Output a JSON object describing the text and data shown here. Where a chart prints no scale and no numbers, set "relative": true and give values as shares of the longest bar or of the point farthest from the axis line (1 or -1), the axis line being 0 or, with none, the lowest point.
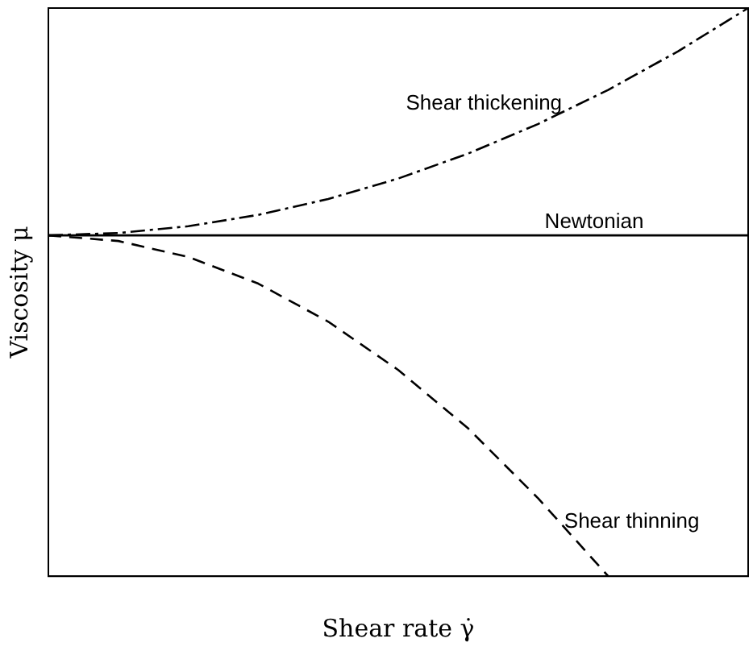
{
  "chart_data": {
    "type": "line",
    "relative": true,
    "xlabel": "Shear rate γ̇",
    "ylabel": "Viscosity μ",
    "legend": false,
    "grid": false,
    "marker": "none",
    "categories": [
      null,
      null,
      null,
      null,
      null,
      null,
      null,
      null,
      null,
      null,
      null
    ],
    "series": [
      {
        "name": "Shear thickening",
        "color": "#000000",
        "line_style": "dashdot",
        "values": [
          0.6,
          0.604,
          0.616,
          0.636,
          0.664,
          0.7,
          0.744,
          0.796,
          0.856,
          0.924,
          1.0
        ]
      },
      {
        "name": "Newtonian",
        "color": "#000000",
        "line_style": "solid",
        "values": [
          0.6,
          0.6,
          0.6,
          0.6,
          0.6,
          0.6,
          0.6,
          0.6,
          0.6,
          0.6,
          0.6
        ]
      },
      {
        "name": "Shear thinning",
        "color": "#000000",
        "line_style": "dashed",
        "values": [
          0.6,
          0.59,
          0.562,
          0.515,
          0.448,
          0.363,
          0.26,
          0.137,
          0.0,
          null,
          null
        ]
      }
    ]
  }
}
